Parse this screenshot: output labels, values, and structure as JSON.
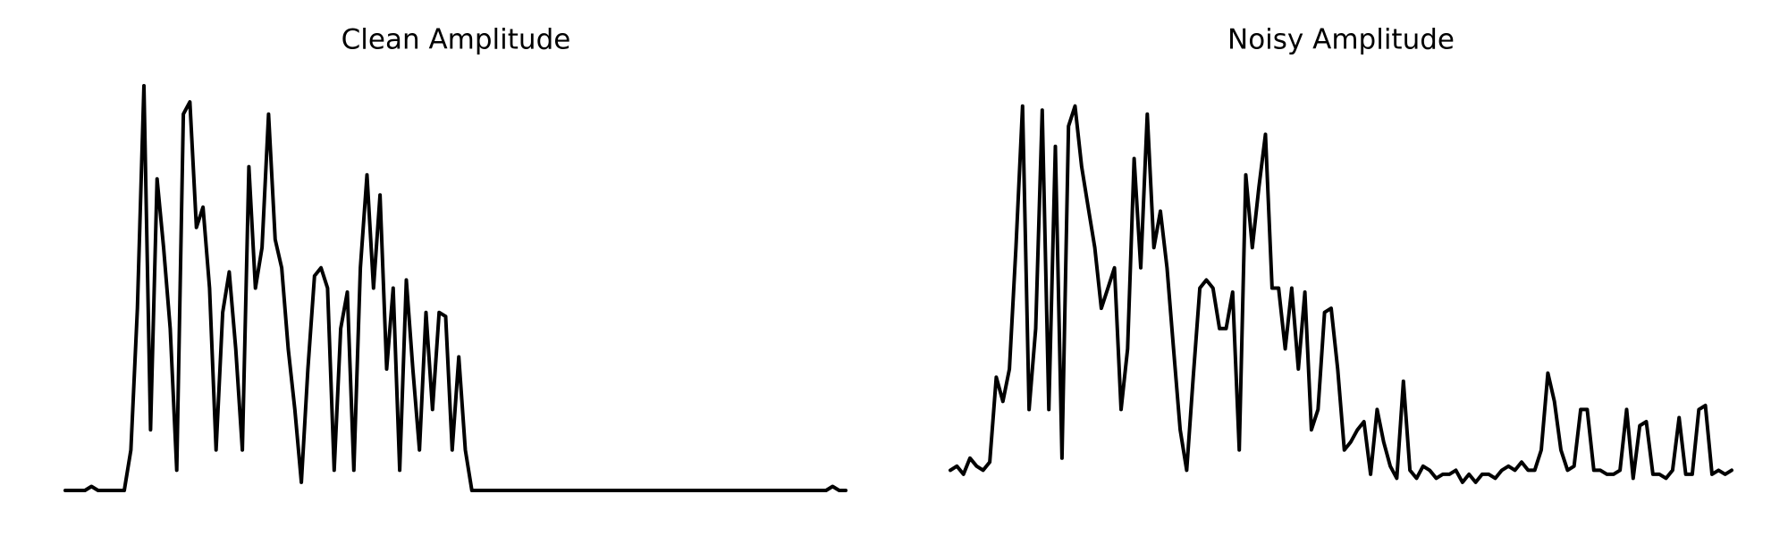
{
  "chart_data": [
    {
      "type": "line",
      "title": "Clean Amplitude",
      "color": "#000000",
      "ylim": [
        0,
        1
      ],
      "values": [
        0,
        0,
        0,
        0,
        0.01,
        0,
        0,
        0,
        0,
        0,
        0.1,
        0.45,
        1.0,
        0.15,
        0.77,
        0.6,
        0.4,
        0.05,
        0.93,
        0.96,
        0.65,
        0.7,
        0.5,
        0.1,
        0.44,
        0.54,
        0.35,
        0.1,
        0.8,
        0.5,
        0.6,
        0.93,
        0.62,
        0.55,
        0.35,
        0.2,
        0.02,
        0.3,
        0.53,
        0.55,
        0.5,
        0.05,
        0.4,
        0.49,
        0.05,
        0.55,
        0.78,
        0.5,
        0.73,
        0.3,
        0.5,
        0.05,
        0.52,
        0.3,
        0.1,
        0.44,
        0.2,
        0.44,
        0.43,
        0.1,
        0.33,
        0.1,
        0,
        0,
        0,
        0,
        0,
        0,
        0,
        0,
        0,
        0,
        0,
        0,
        0,
        0,
        0,
        0,
        0,
        0,
        0,
        0,
        0,
        0,
        0,
        0,
        0,
        0,
        0,
        0,
        0,
        0,
        0,
        0,
        0,
        0,
        0,
        0,
        0,
        0,
        0,
        0,
        0,
        0,
        0,
        0,
        0,
        0,
        0,
        0,
        0,
        0,
        0,
        0,
        0,
        0,
        0,
        0.01,
        0,
        0
      ]
    },
    {
      "type": "line",
      "title": "Noisy Amplitude",
      "color": "#000000",
      "ylim": [
        0,
        1
      ],
      "values": [
        0.05,
        0.06,
        0.04,
        0.08,
        0.06,
        0.05,
        0.07,
        0.28,
        0.22,
        0.3,
        0.6,
        0.95,
        0.2,
        0.4,
        0.94,
        0.2,
        0.85,
        0.08,
        0.9,
        0.95,
        0.8,
        0.7,
        0.6,
        0.45,
        0.5,
        0.55,
        0.2,
        0.35,
        0.82,
        0.55,
        0.93,
        0.6,
        0.69,
        0.55,
        0.35,
        0.15,
        0.05,
        0.28,
        0.5,
        0.52,
        0.5,
        0.4,
        0.4,
        0.49,
        0.1,
        0.78,
        0.6,
        0.75,
        0.88,
        0.5,
        0.5,
        0.35,
        0.5,
        0.3,
        0.49,
        0.15,
        0.2,
        0.44,
        0.45,
        0.3,
        0.1,
        0.12,
        0.15,
        0.17,
        0.04,
        0.2,
        0.12,
        0.06,
        0.03,
        0.27,
        0.05,
        0.03,
        0.06,
        0.05,
        0.03,
        0.04,
        0.04,
        0.05,
        0.02,
        0.04,
        0.02,
        0.04,
        0.04,
        0.03,
        0.05,
        0.06,
        0.05,
        0.07,
        0.05,
        0.05,
        0.1,
        0.29,
        0.22,
        0.1,
        0.05,
        0.06,
        0.2,
        0.2,
        0.05,
        0.05,
        0.04,
        0.04,
        0.05,
        0.2,
        0.03,
        0.16,
        0.17,
        0.04,
        0.04,
        0.03,
        0.05,
        0.18,
        0.04,
        0.04,
        0.2,
        0.21,
        0.04,
        0.05,
        0.04,
        0.05
      ]
    }
  ]
}
